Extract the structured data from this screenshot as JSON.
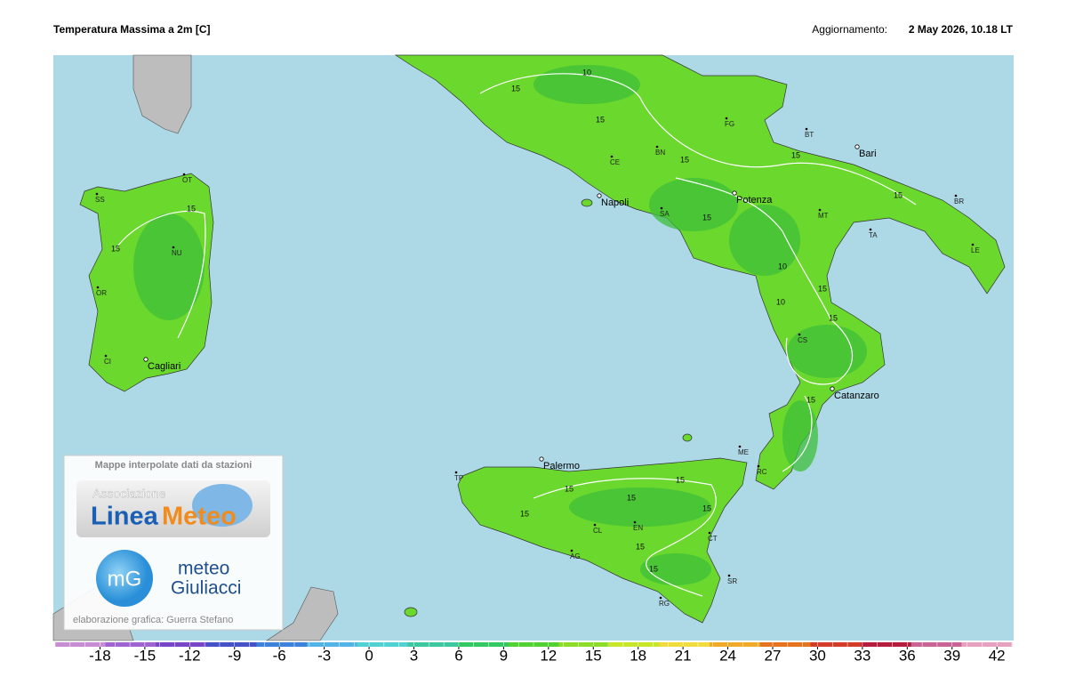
{
  "header": {
    "title": "Temperatura Massima a 2m [C]",
    "update_label": "Aggiornamento:",
    "update_time": "2 May 2026, 10.18 LT"
  },
  "map": {
    "cities": [
      "Napoli",
      "Potenza",
      "Bari",
      "Catanzaro",
      "Palermo",
      "Cagliari"
    ],
    "provinces": [
      "SS",
      "OT",
      "NU",
      "OR",
      "CI",
      "CE",
      "BN",
      "FG",
      "BT",
      "SA",
      "MT",
      "TA",
      "BR",
      "LE",
      "CS",
      "RC",
      "ME",
      "TP",
      "AG",
      "CL",
      "EN",
      "CT",
      "SR",
      "RG"
    ],
    "contour_labels": [
      15,
      15,
      15,
      15,
      15,
      15,
      15,
      15,
      15,
      15,
      10,
      10,
      10,
      15,
      15,
      15,
      15,
      15,
      15,
      15,
      15
    ]
  },
  "colorbar": {
    "lim": [
      -21,
      43
    ],
    "ticks": [
      -18,
      -15,
      -12,
      -9,
      -6,
      -3,
      0,
      3,
      6,
      9,
      12,
      15,
      18,
      21,
      24,
      27,
      30,
      33,
      36,
      39,
      42
    ],
    "colors": [
      "#c88cd2",
      "#a064d2",
      "#7846c8",
      "#4650c8",
      "#3c82dc",
      "#50b4e6",
      "#50d2d2",
      "#3cc8a0",
      "#32c864",
      "#50d232",
      "#8cdc28",
      "#c8e628",
      "#f0dc3c",
      "#f0aa28",
      "#e6731e",
      "#d23c28",
      "#b41e3c",
      "#c86496",
      "#e6a0c0"
    ]
  },
  "logo": {
    "caption": "Mappe interpolate dati da stazioni",
    "assoc": "Associazione",
    "linea": "Linea",
    "meteo_word": "Meteo",
    "mg": "mG",
    "meteo": "meteo",
    "giuliacci": "Giuliacci",
    "credit": "elaborazione grafica: Guerra Stefano"
  }
}
